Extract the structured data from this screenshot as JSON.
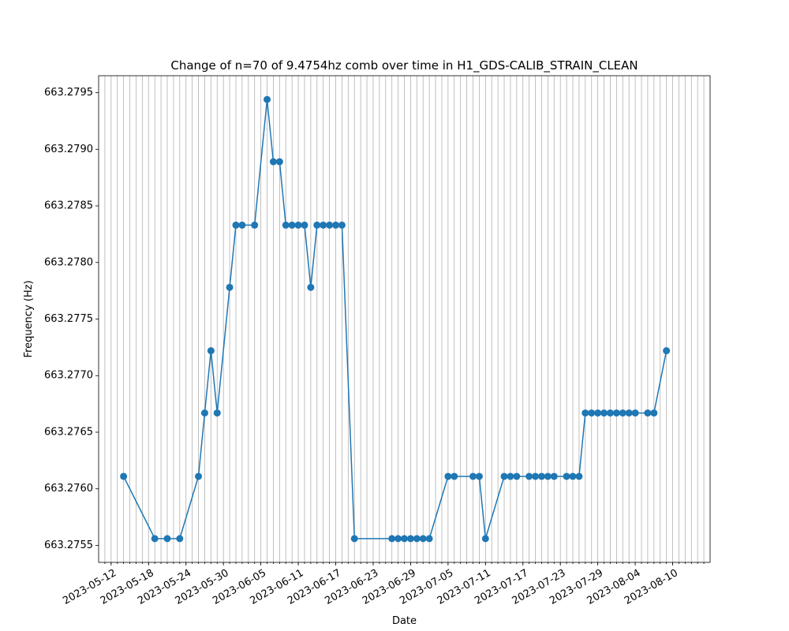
{
  "chart_data": {
    "type": "line",
    "title": "Change of n=70 of 9.4754hz comb over time in H1_GDS-CALIB_STRAIN_CLEAN",
    "xlabel": "Date",
    "ylabel": "Frequency (Hz)",
    "xlim": [
      "2023-05-10",
      "2023-08-16"
    ],
    "ylim": [
      663.27535,
      663.27965
    ],
    "x_tick_labels": [
      "2023-05-12",
      "2023-05-18",
      "2023-05-24",
      "2023-05-30",
      "2023-06-05",
      "2023-06-11",
      "2023-06-17",
      "2023-06-23",
      "2023-06-29",
      "2023-07-05",
      "2023-07-11",
      "2023-07-17",
      "2023-07-23",
      "2023-07-29",
      "2023-08-04",
      "2023-08-10"
    ],
    "y_ticks": [
      663.2755,
      663.276,
      663.2765,
      663.277,
      663.2775,
      663.278,
      663.2785,
      663.279,
      663.2795
    ],
    "y_tick_labels": [
      "663.2755",
      "663.2760",
      "663.2765",
      "663.2770",
      "663.2775",
      "663.2780",
      "663.2785",
      "663.2790",
      "663.2795"
    ],
    "grid": "vertical daily",
    "color": "#1f77b4",
    "series": [
      {
        "x": [
          "2023-05-14",
          "2023-05-19",
          "2023-05-21",
          "2023-05-23",
          "2023-05-26",
          "2023-05-27",
          "2023-05-28",
          "2023-05-29",
          "2023-05-31",
          "2023-06-01",
          "2023-06-02",
          "2023-06-04",
          "2023-06-06",
          "2023-06-07",
          "2023-06-08",
          "2023-06-09",
          "2023-06-10",
          "2023-06-11",
          "2023-06-12",
          "2023-06-13",
          "2023-06-14",
          "2023-06-15",
          "2023-06-16",
          "2023-06-17",
          "2023-06-18",
          "2023-06-20",
          "2023-06-26",
          "2023-06-27",
          "2023-06-28",
          "2023-06-29",
          "2023-06-30",
          "2023-07-01",
          "2023-07-02",
          "2023-07-05",
          "2023-07-06",
          "2023-07-09",
          "2023-07-10",
          "2023-07-11",
          "2023-07-14",
          "2023-07-15",
          "2023-07-16",
          "2023-07-18",
          "2023-07-19",
          "2023-07-20",
          "2023-07-21",
          "2023-07-22",
          "2023-07-24",
          "2023-07-25",
          "2023-07-26",
          "2023-07-27",
          "2023-07-28",
          "2023-07-29",
          "2023-07-30",
          "2023-07-31",
          "2023-08-01",
          "2023-08-02",
          "2023-08-03",
          "2023-08-04",
          "2023-08-06",
          "2023-08-07",
          "2023-08-09"
        ],
        "values": [
          663.27611,
          663.27556,
          663.27556,
          663.27556,
          663.27611,
          663.27667,
          663.27722,
          663.27667,
          663.27778,
          663.27833,
          663.27833,
          663.27833,
          663.27944,
          663.27889,
          663.27889,
          663.27833,
          663.27833,
          663.27833,
          663.27833,
          663.27778,
          663.27833,
          663.27833,
          663.27833,
          663.27833,
          663.27833,
          663.27556,
          663.27556,
          663.27556,
          663.27556,
          663.27556,
          663.27556,
          663.27556,
          663.27556,
          663.27611,
          663.27611,
          663.27611,
          663.27611,
          663.27556,
          663.27611,
          663.27611,
          663.27611,
          663.27611,
          663.27611,
          663.27611,
          663.27611,
          663.27611,
          663.27611,
          663.27611,
          663.27611,
          663.27667,
          663.27667,
          663.27667,
          663.27667,
          663.27667,
          663.27667,
          663.27667,
          663.27667,
          663.27667,
          663.27667,
          663.27667,
          663.27722
        ]
      }
    ]
  }
}
